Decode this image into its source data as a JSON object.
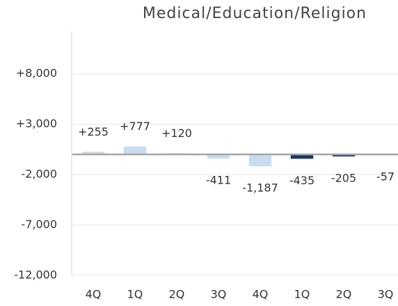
{
  "chart_data": {
    "type": "bar",
    "title": "Medical/Education/Religion",
    "categories": [
      "4Q",
      "1Q",
      "2Q",
      "3Q",
      "4Q",
      "1Q",
      "2Q",
      "3Q"
    ],
    "values": [
      255,
      777,
      120,
      -411,
      -1187,
      -435,
      -205,
      -57
    ],
    "value_labels": [
      "+255",
      "+777",
      "+120",
      "-411",
      "-1,187",
      "-435",
      "-205",
      "-57"
    ],
    "colors": [
      "#d9d9d9",
      "#c9dcf0",
      "#c9dcf0",
      "#c9dcf0",
      "#c9dcf0",
      "#1f3864",
      "#1f3864",
      "#1f3864"
    ],
    "ylim": [
      -12000,
      12000
    ],
    "yticks": [
      {
        "value": 8000,
        "label": "+8,000"
      },
      {
        "value": 3000,
        "label": "+3,000"
      },
      {
        "value": -2000,
        "label": "-2,000"
      },
      {
        "value": -7000,
        "label": "-7,000"
      },
      {
        "value": -12000,
        "label": "-12,000"
      }
    ],
    "grid": true
  }
}
